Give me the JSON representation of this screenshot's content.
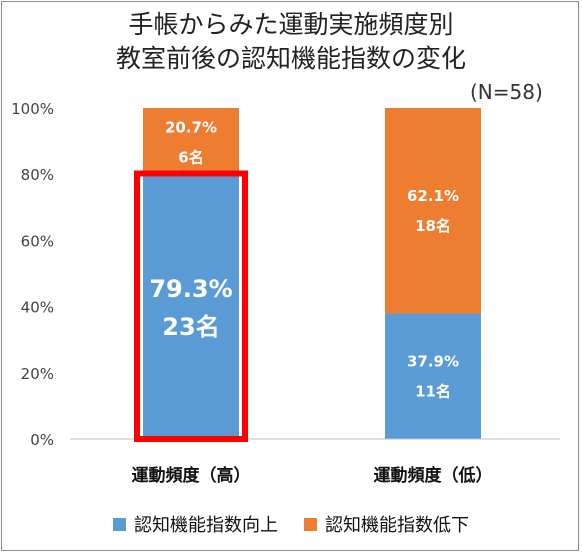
{
  "chart_data": {
    "type": "bar",
    "stacked": true,
    "title_lines": [
      "手帳からみた運動実施頻度別",
      "教室前後の認知機能指数の変化"
    ],
    "note": "(N=58)",
    "categories": [
      "運動頻度（高）",
      "運動頻度（低）"
    ],
    "series": [
      {
        "name": "認知機能指数向上",
        "color": "#5B9BD5",
        "values": [
          79.3,
          37.9
        ],
        "labels": [
          [
            "79.3%",
            "23名"
          ],
          [
            "37.9%",
            "11名"
          ]
        ]
      },
      {
        "name": "認知機能指数低下",
        "color": "#ED7D31",
        "values": [
          20.7,
          62.1
        ],
        "labels": [
          [
            "20.7%",
            "6名"
          ],
          [
            "62.1%",
            "18名"
          ]
        ]
      }
    ],
    "y_ticks": [
      "0%",
      "20%",
      "40%",
      "60%",
      "80%",
      "100%"
    ],
    "ylim": [
      0,
      100
    ],
    "highlight": {
      "category": 0,
      "color": "#FF0000"
    },
    "legend_position": "bottom",
    "grid": false
  }
}
